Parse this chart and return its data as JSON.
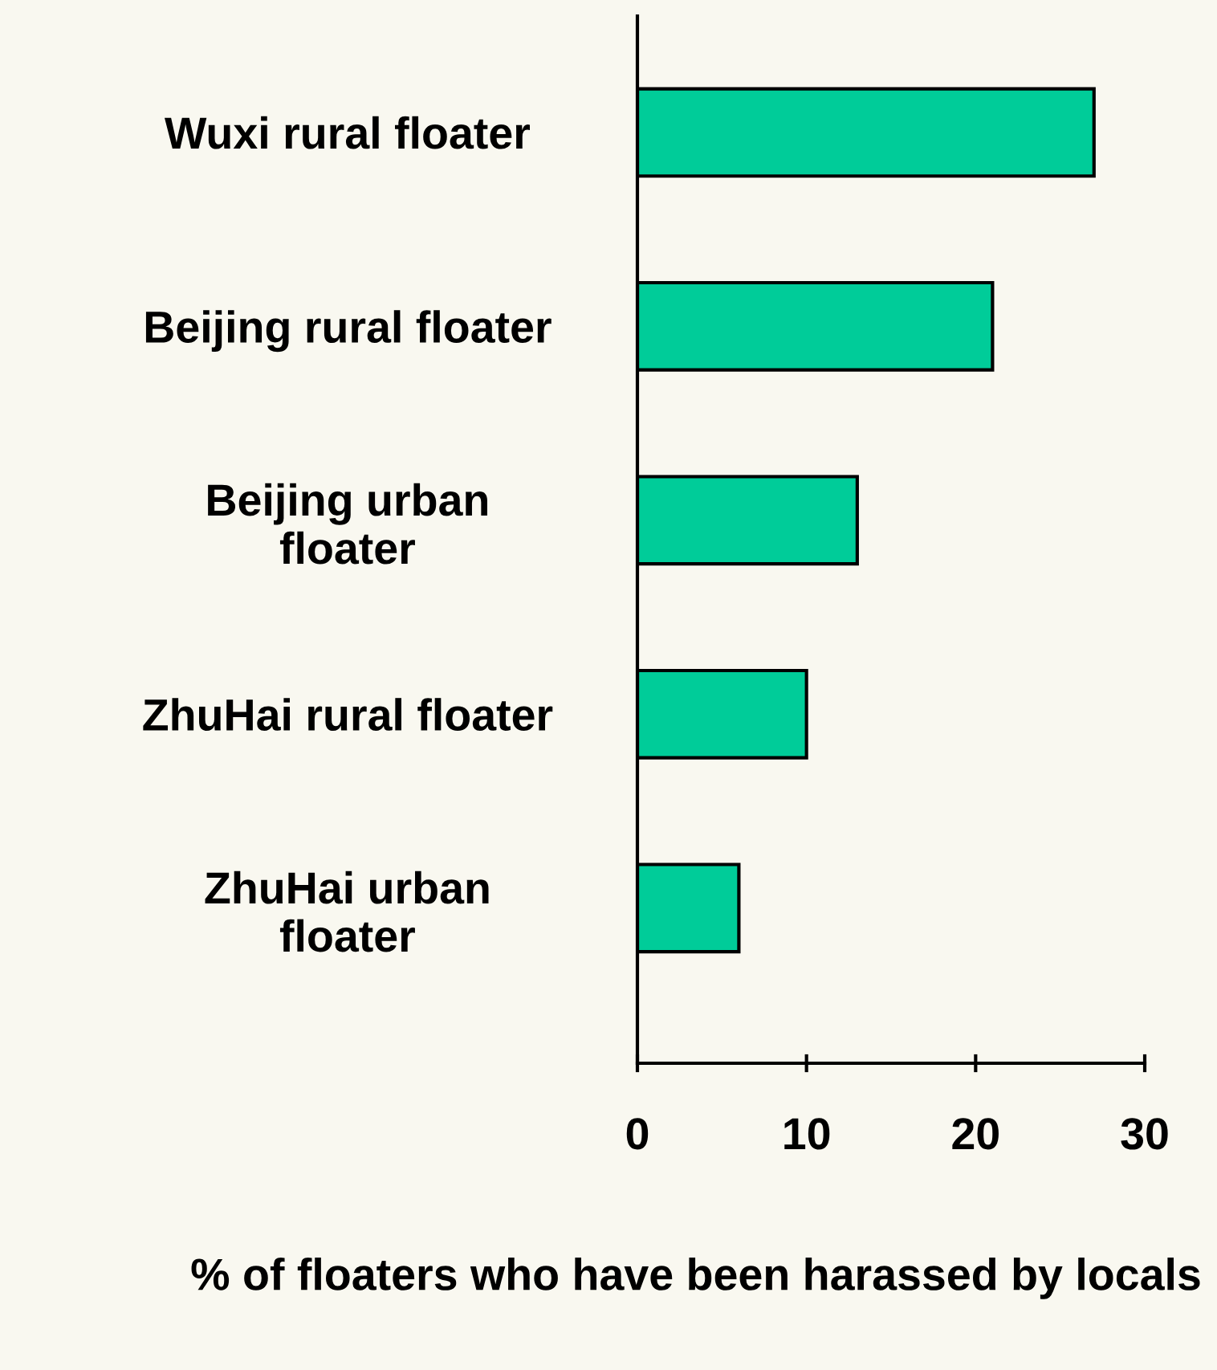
{
  "chart_data": {
    "type": "bar",
    "orientation": "horizontal",
    "categories": [
      "Wuxi rural floater",
      "Beijing rural floater",
      "Beijing urban\nfloater",
      "ZhuHai rural floater",
      "ZhuHai urban\nfloater"
    ],
    "values": [
      27,
      21,
      13,
      10,
      6
    ],
    "color": "#00cc99",
    "xlim": [
      0,
      30
    ],
    "xticks": [
      0,
      10,
      20,
      30
    ],
    "xlabel": "% of floaters who have been harassed by locals",
    "grid": false
  }
}
